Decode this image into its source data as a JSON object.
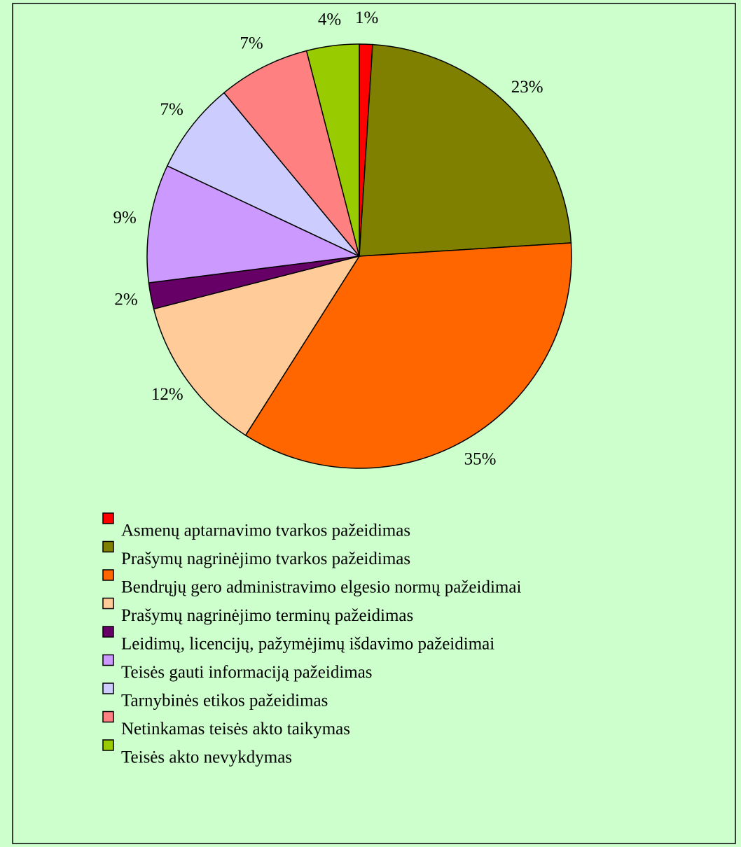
{
  "chart_data": {
    "type": "pie",
    "categories": [
      "Asmenų aptarnavimo tvarkos pažeidimas",
      "Prašymų nagrinėjimo tvarkos pažeidimas",
      "Bendrųjų gero administravimo elgesio normų pažeidimai",
      "Prašymų nagrinėjimo terminų pažeidimas",
      "Leidimų, licencijų, pažymėjimų išdavimo pažeidimai",
      "Teisės gauti informaciją pažeidimas",
      "Tarnybinės etikos pažeidimas",
      "Netinkamas teisės akto taikymas",
      "Teisės akto nevykdymas"
    ],
    "values": [
      1,
      23,
      35,
      12,
      2,
      9,
      7,
      7,
      4
    ],
    "value_labels": [
      "1%",
      "23%",
      "35%",
      "12%",
      "2%",
      "9%",
      "7%",
      "7%",
      "4%"
    ],
    "colors": [
      "#ff0000",
      "#808000",
      "#ff6600",
      "#ffcc99",
      "#660066",
      "#cc99ff",
      "#ccccff",
      "#ff8080",
      "#99cc00"
    ],
    "legend": "bottom"
  }
}
